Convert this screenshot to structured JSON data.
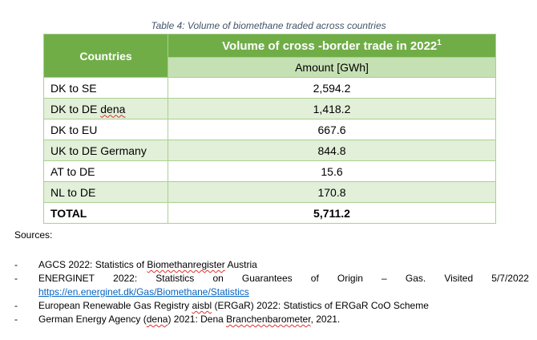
{
  "caption": "Table 4: Volume of biomethane traded across countries",
  "table": {
    "header_countries": "Countries",
    "header_volume": "Volume of cross -border trade in 2022",
    "header_volume_sup": "1",
    "header_amount": "Amount [GWh]",
    "rows": [
      {
        "country": "DK to SE",
        "amount": "2,594.2"
      },
      {
        "country_prefix": "DK to DE ",
        "country_flagged": "dena",
        "amount": "1,418.2"
      },
      {
        "country": "DK to EU",
        "amount": "667.6"
      },
      {
        "country": "UK to DE Germany",
        "amount": "844.8"
      },
      {
        "country": "AT to DE",
        "amount": "15.6"
      },
      {
        "country": "NL to DE",
        "amount": "170.8"
      }
    ],
    "total_label": "TOTAL",
    "total_amount": "5,711.2",
    "colors": {
      "header_green": "#70ad47",
      "amount_band": "#c5e0b3",
      "row_band": "#e2efd9",
      "border": "#a9d08e"
    }
  },
  "sources": {
    "label": "Sources:",
    "items": [
      {
        "dash": "-",
        "text_a": "AGCS 2022: Statistics of ",
        "text_flagged": "Biomethanregister",
        "text_b": " Austria"
      },
      {
        "dash": "-",
        "words": [
          "ENERGINET",
          "2022:",
          "Statistics",
          "on",
          "Guarantees",
          "of",
          "Origin",
          "–",
          "Gas.",
          "Visited",
          "5/7/2022"
        ],
        "link": "https://en.energinet.dk/Gas/Biomethane/Statistics"
      },
      {
        "dash": "-",
        "text_a": "European Renewable Gas Registry ",
        "text_flagged": "aisbl",
        "text_b": " (ERGaR) 2022: Statistics of ERGaR CoO Scheme"
      },
      {
        "dash": "-",
        "text_a": "German Energy Agency (",
        "text_flagged": "dena",
        "text_b": ") 2021: Dena ",
        "text_flagged2": "Branchenbarometer",
        "text_c": ", 2021."
      }
    ]
  }
}
